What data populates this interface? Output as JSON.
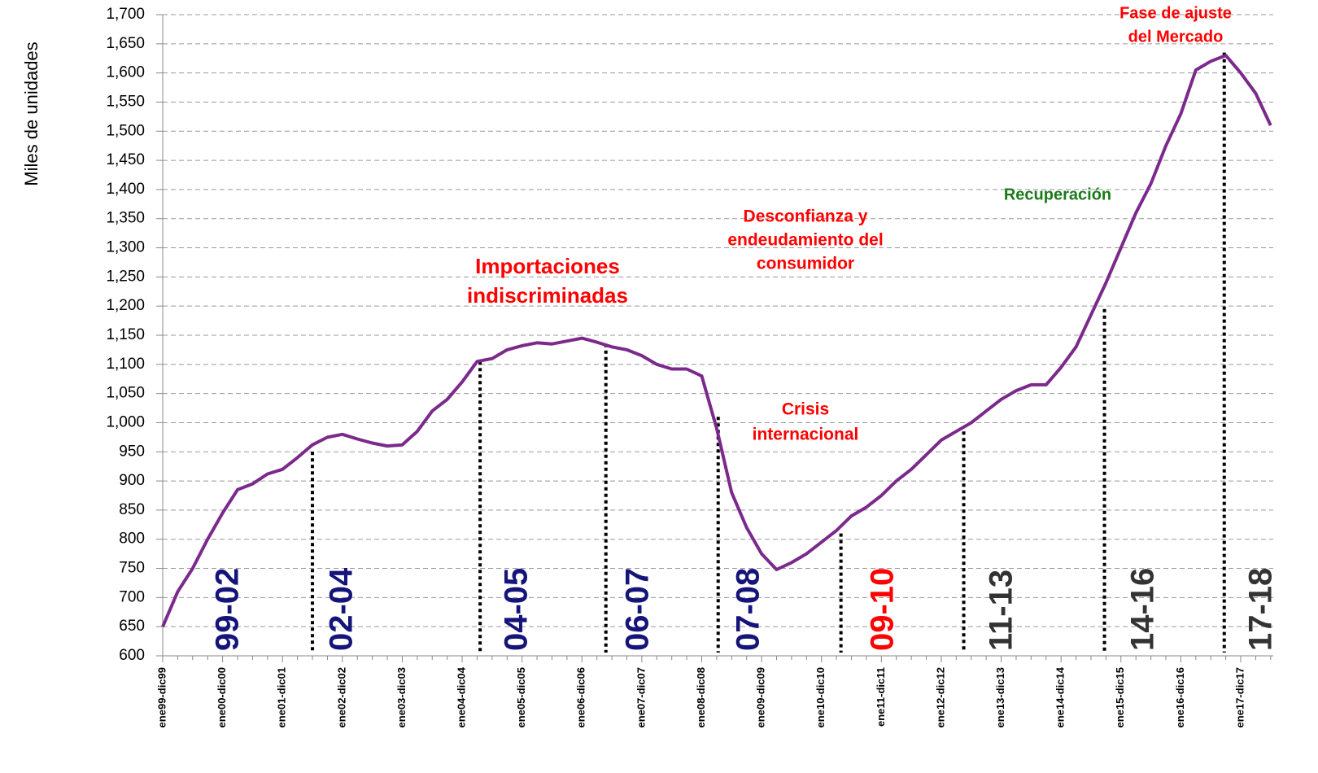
{
  "chart_data": {
    "type": "line",
    "y_label": "Miles de unidades",
    "categories": [
      "ene99-dic99",
      null,
      null,
      null,
      "ene00-dic00",
      null,
      null,
      null,
      "ene01-dic01",
      null,
      null,
      null,
      "ene02-dic02",
      null,
      null,
      null,
      "ene03-dic03",
      null,
      null,
      null,
      "ene04-dic04",
      null,
      null,
      null,
      "ene05-dic05",
      null,
      null,
      null,
      "ene06-dic06",
      null,
      null,
      null,
      "ene07-dic07",
      null,
      null,
      null,
      "ene08-dic08",
      null,
      null,
      null,
      "ene09-dic09",
      null,
      null,
      null,
      "ene10-dic10",
      null,
      null,
      null,
      "ene11-dic11",
      null,
      null,
      null,
      "ene12-dic12",
      null,
      null,
      null,
      "ene13-dic13",
      null,
      null,
      null,
      "ene14-dic14",
      null,
      null,
      null,
      "ene15-dic15",
      null,
      null,
      null,
      "ene16-dic16",
      null,
      null,
      null,
      "ene17-dic17",
      null,
      null
    ],
    "series": [
      {
        "color": "#7b2a8c",
        "values": [
          650,
          710,
          750,
          800,
          845,
          885,
          895,
          912,
          920,
          940,
          962,
          975,
          980,
          972,
          965,
          960,
          962,
          985,
          1020,
          1040,
          1070,
          1105,
          1110,
          1125,
          1132,
          1137,
          1135,
          1140,
          1145,
          1138,
          1130,
          1125,
          1115,
          1100,
          1092,
          1092,
          1080,
          990,
          880,
          820,
          775,
          748,
          760,
          775,
          795,
          815,
          840,
          855,
          875,
          900,
          920,
          945,
          970,
          985,
          1000,
          1020,
          1040,
          1055,
          1065,
          1065,
          1095,
          1130,
          1185,
          1240,
          1300,
          1360,
          1410,
          1475,
          1530,
          1605,
          1620,
          1630,
          1600,
          1565,
          1510
        ]
      }
    ],
    "ylim": [
      600,
      1700
    ],
    "yticks": [
      600,
      650,
      700,
      750,
      800,
      850,
      900,
      950,
      {
        "value": 1000,
        "label": "1,000"
      },
      {
        "value": 1050,
        "label": "1,050"
      },
      {
        "value": 1100,
        "label": "1,100"
      },
      {
        "value": 1150,
        "label": "1,150"
      },
      {
        "value": 1200,
        "label": "1,200"
      },
      {
        "value": 1250,
        "label": "1,250"
      },
      {
        "value": 1300,
        "label": "1,300"
      },
      {
        "value": 1350,
        "label": "1,350"
      },
      {
        "value": 1400,
        "label": "1,400"
      },
      {
        "value": 1450,
        "label": "1,450"
      },
      {
        "value": 1500,
        "label": "1,500"
      },
      {
        "value": 1550,
        "label": "1,550"
      },
      {
        "value": 1600,
        "label": "1,600"
      },
      {
        "value": 1650,
        "label": "1,650"
      },
      {
        "value": 1700,
        "label": "1,700"
      }
    ],
    "grid": true,
    "dividers": [
      {
        "x": 10,
        "y": 950
      },
      {
        "x": 21.2,
        "y": 1105
      },
      {
        "x": 29.6,
        "y": 1135
      },
      {
        "x": 37.1,
        "y": 1010
      },
      {
        "x": 45.3,
        "y": 810
      },
      {
        "x": 53.5,
        "y": 985
      },
      {
        "x": 62.9,
        "y": 1195
      },
      {
        "x": 70.9,
        "y": 1635
      }
    ],
    "periods": [
      {
        "label": "99-02",
        "color": "#14147a"
      },
      {
        "label": "02-04",
        "color": "#14147a"
      },
      {
        "label": "04-05",
        "color": "#14147a"
      },
      {
        "label": "06-07",
        "color": "#14147a"
      },
      {
        "label": "07-08",
        "color": "#14147a"
      },
      {
        "label": "09-10",
        "color": "#ff0000"
      },
      {
        "label": "11-13",
        "color": "#333333"
      },
      {
        "label": "14-16",
        "color": "#333333"
      },
      {
        "label": "17-18",
        "color": "#333333"
      }
    ],
    "annotations": [
      {
        "lines": [
          "Importaciones",
          "indiscriminadas"
        ],
        "color": "#ff0000"
      },
      {
        "lines": [
          "Desconfianza y",
          "endeudamiento del",
          "consumidor"
        ],
        "color": "#ff0000"
      },
      {
        "lines": [
          "Crisis",
          "internacional"
        ],
        "color": "#ff0000"
      },
      {
        "lines": [
          "Recuperación"
        ],
        "color": "#1a7a1a"
      },
      {
        "lines": [
          "Fase de ajuste",
          "del Mercado"
        ],
        "color": "#ff0000"
      }
    ]
  }
}
